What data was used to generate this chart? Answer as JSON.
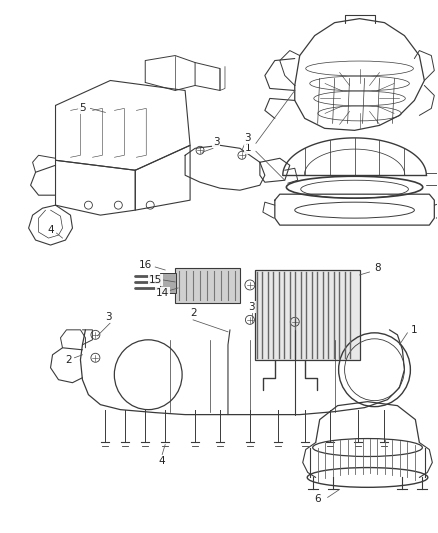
{
  "background_color": "#ffffff",
  "line_color": "#3a3a3a",
  "text_color": "#222222",
  "fig_width": 4.38,
  "fig_height": 5.33,
  "dpi": 100
}
